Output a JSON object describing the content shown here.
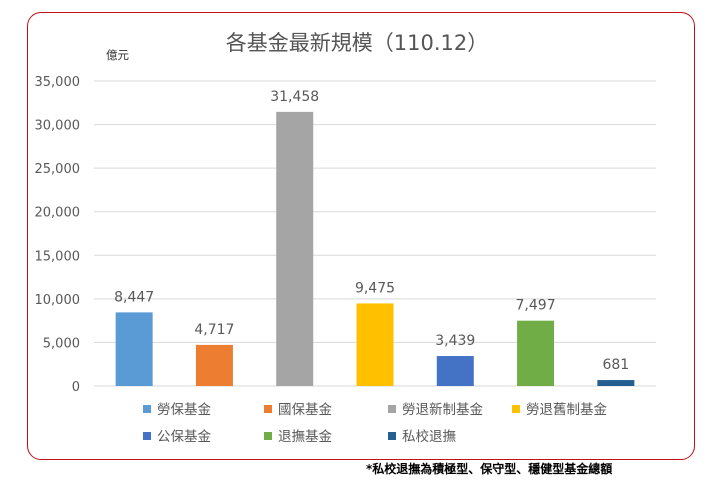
{
  "chart_data": {
    "type": "bar",
    "title": "各基金最新規模（110.12）",
    "ylabel": "億元",
    "xlabel": "",
    "ylim": [
      0,
      35000
    ],
    "yticks": [
      0,
      5000,
      10000,
      15000,
      20000,
      25000,
      30000,
      35000
    ],
    "ytick_labels": [
      "0",
      "5,000",
      "10,000",
      "15,000",
      "20,000",
      "25,000",
      "30,000",
      "35,000"
    ],
    "grid": true,
    "legend_position": "bottom",
    "categories": [
      "勞保基金",
      "國保基金",
      "勞退新制基金",
      "勞退舊制基金",
      "公保基金",
      "退撫基金",
      "私校退撫"
    ],
    "values": [
      8447,
      4717,
      31458,
      9475,
      3439,
      7497,
      681
    ],
    "value_labels": [
      "8,447",
      "4,717",
      "31,458",
      "9,475",
      "3,439",
      "7,497",
      "681"
    ],
    "colors": [
      "#5b9bd5",
      "#ed7d31",
      "#a5a5a5",
      "#ffc000",
      "#4472c4",
      "#70ad47",
      "#255e91"
    ],
    "footnote": "*私校退撫為積極型、保守型、穩健型基金總額"
  }
}
